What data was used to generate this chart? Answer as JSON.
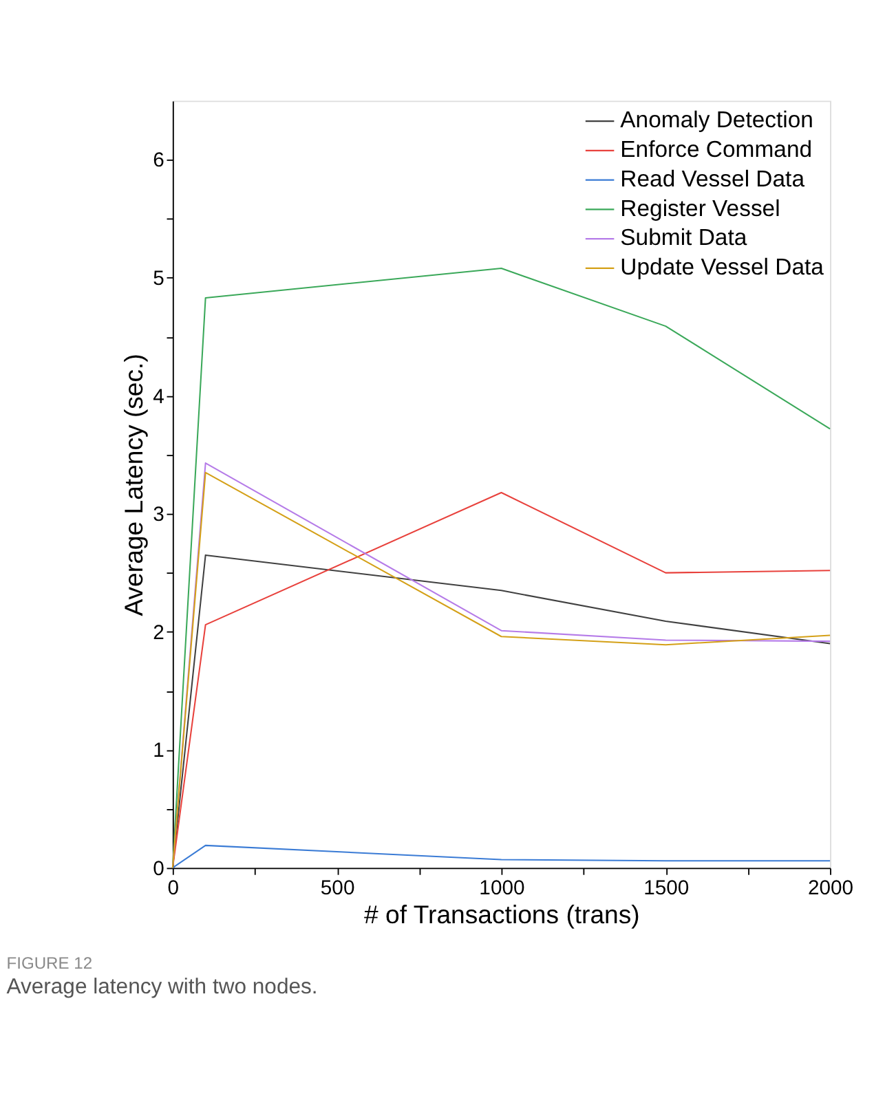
{
  "chart_data": {
    "type": "line",
    "xlabel": "# of Transactions (trans)",
    "ylabel": "Average Latency (sec.)",
    "x": [
      0,
      100,
      1000,
      1500,
      2000
    ],
    "series": [
      {
        "name": "Anomaly Detection",
        "color": "#404040",
        "values": [
          0,
          2.65,
          2.35,
          2.09,
          1.9
        ]
      },
      {
        "name": "Enforce Command",
        "color": "#e8413c",
        "values": [
          0,
          2.06,
          3.18,
          2.5,
          2.52
        ]
      },
      {
        "name": "Read Vessel Data",
        "color": "#3a7bd5",
        "values": [
          0,
          0.19,
          0.07,
          0.06,
          0.06
        ]
      },
      {
        "name": "Register Vessel",
        "color": "#3aa859",
        "values": [
          0,
          4.83,
          5.08,
          4.59,
          3.72
        ]
      },
      {
        "name": "Submit Data",
        "color": "#b57be8",
        "values": [
          0,
          3.43,
          2.01,
          1.93,
          1.92
        ]
      },
      {
        "name": "Update Vessel Data",
        "color": "#d4a017",
        "values": [
          0,
          3.35,
          1.96,
          1.89,
          1.97
        ]
      }
    ],
    "xlim": [
      0,
      2000
    ],
    "xticks": [
      0,
      {
        "value": 250,
        "label": null
      },
      500,
      {
        "value": 750,
        "label": null
      },
      1000,
      {
        "value": 1250,
        "label": null
      },
      1500,
      {
        "value": 1750,
        "label": null
      },
      2000
    ],
    "ylim": [
      0,
      6.5
    ],
    "yticks": [
      0,
      {
        "value": 0.5,
        "label": null
      },
      1,
      {
        "value": 1.5,
        "label": null
      },
      2,
      {
        "value": 2.5,
        "label": null
      },
      3,
      {
        "value": 3.5,
        "label": null
      },
      4,
      {
        "value": 4.5,
        "label": null
      },
      5,
      {
        "value": 5.5,
        "label": null
      },
      6
    ],
    "grid": false,
    "legend": "top right",
    "marker": "none",
    "line_style": "solid",
    "annotations": [
      "FIGURE 12",
      "Average latency with two nodes."
    ]
  }
}
